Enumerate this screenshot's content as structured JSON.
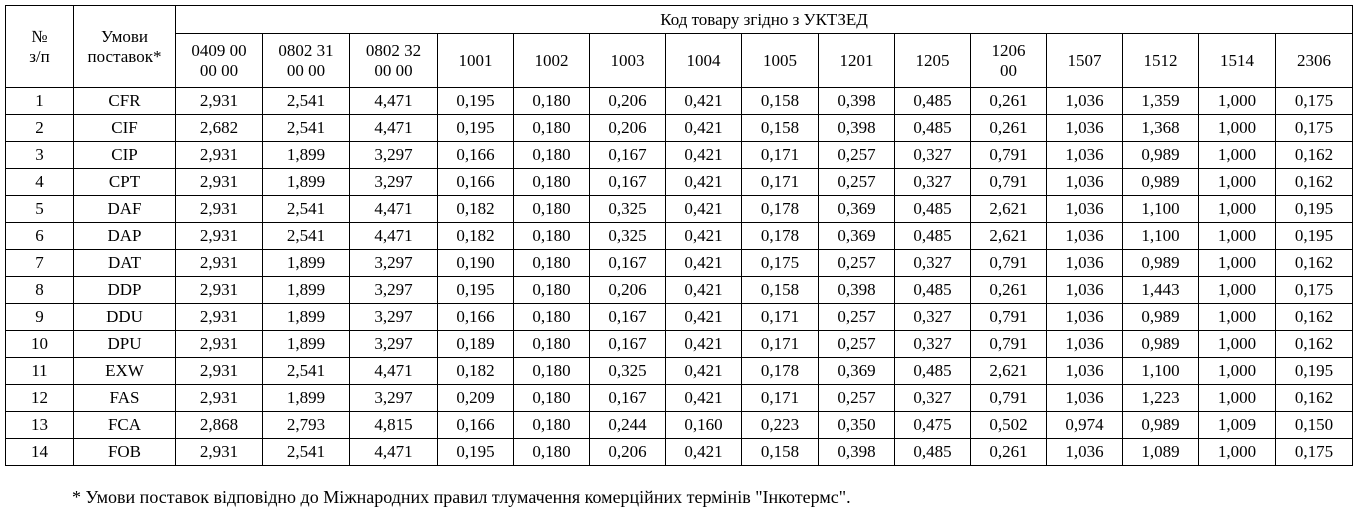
{
  "table": {
    "header": {
      "number": "№\nз/п",
      "terms": "Умови\nпоставок*",
      "group": "Код товару згідно з УКТЗЕД",
      "codes": [
        "0409 00\n00 00",
        "0802 31\n00 00",
        "0802 32\n00 00",
        "1001",
        "1002",
        "1003",
        "1004",
        "1005",
        "1201",
        "1205",
        "1206\n00",
        "1507",
        "1512",
        "1514",
        "2306"
      ]
    },
    "rows": [
      [
        "1",
        "CFR",
        "2,931",
        "2,541",
        "4,471",
        "0,195",
        "0,180",
        "0,206",
        "0,421",
        "0,158",
        "0,398",
        "0,485",
        "0,261",
        "1,036",
        "1,359",
        "1,000",
        "0,175"
      ],
      [
        "2",
        "CIF",
        "2,682",
        "2,541",
        "4,471",
        "0,195",
        "0,180",
        "0,206",
        "0,421",
        "0,158",
        "0,398",
        "0,485",
        "0,261",
        "1,036",
        "1,368",
        "1,000",
        "0,175"
      ],
      [
        "3",
        "CIP",
        "2,931",
        "1,899",
        "3,297",
        "0,166",
        "0,180",
        "0,167",
        "0,421",
        "0,171",
        "0,257",
        "0,327",
        "0,791",
        "1,036",
        "0,989",
        "1,000",
        "0,162"
      ],
      [
        "4",
        "CPT",
        "2,931",
        "1,899",
        "3,297",
        "0,166",
        "0,180",
        "0,167",
        "0,421",
        "0,171",
        "0,257",
        "0,327",
        "0,791",
        "1,036",
        "0,989",
        "1,000",
        "0,162"
      ],
      [
        "5",
        "DAF",
        "2,931",
        "2,541",
        "4,471",
        "0,182",
        "0,180",
        "0,325",
        "0,421",
        "0,178",
        "0,369",
        "0,485",
        "2,621",
        "1,036",
        "1,100",
        "1,000",
        "0,195"
      ],
      [
        "6",
        "DAP",
        "2,931",
        "2,541",
        "4,471",
        "0,182",
        "0,180",
        "0,325",
        "0,421",
        "0,178",
        "0,369",
        "0,485",
        "2,621",
        "1,036",
        "1,100",
        "1,000",
        "0,195"
      ],
      [
        "7",
        "DAT",
        "2,931",
        "1,899",
        "3,297",
        "0,190",
        "0,180",
        "0,167",
        "0,421",
        "0,175",
        "0,257",
        "0,327",
        "0,791",
        "1,036",
        "0,989",
        "1,000",
        "0,162"
      ],
      [
        "8",
        "DDP",
        "2,931",
        "1,899",
        "3,297",
        "0,195",
        "0,180",
        "0,206",
        "0,421",
        "0,158",
        "0,398",
        "0,485",
        "0,261",
        "1,036",
        "1,443",
        "1,000",
        "0,175"
      ],
      [
        "9",
        "DDU",
        "2,931",
        "1,899",
        "3,297",
        "0,166",
        "0,180",
        "0,167",
        "0,421",
        "0,171",
        "0,257",
        "0,327",
        "0,791",
        "1,036",
        "0,989",
        "1,000",
        "0,162"
      ],
      [
        "10",
        "DPU",
        "2,931",
        "1,899",
        "3,297",
        "0,189",
        "0,180",
        "0,167",
        "0,421",
        "0,171",
        "0,257",
        "0,327",
        "0,791",
        "1,036",
        "0,989",
        "1,000",
        "0,162"
      ],
      [
        "11",
        "EXW",
        "2,931",
        "2,541",
        "4,471",
        "0,182",
        "0,180",
        "0,325",
        "0,421",
        "0,178",
        "0,369",
        "0,485",
        "2,621",
        "1,036",
        "1,100",
        "1,000",
        "0,195"
      ],
      [
        "12",
        "FAS",
        "2,931",
        "1,899",
        "3,297",
        "0,209",
        "0,180",
        "0,167",
        "0,421",
        "0,171",
        "0,257",
        "0,327",
        "0,791",
        "1,036",
        "1,223",
        "1,000",
        "0,162"
      ],
      [
        "13",
        "FCA",
        "2,868",
        "2,793",
        "4,815",
        "0,166",
        "0,180",
        "0,244",
        "0,160",
        "0,223",
        "0,350",
        "0,475",
        "0,502",
        "0,974",
        "0,989",
        "1,009",
        "0,150"
      ],
      [
        "14",
        "FOB",
        "2,931",
        "2,541",
        "4,471",
        "0,195",
        "0,180",
        "0,206",
        "0,421",
        "0,158",
        "0,398",
        "0,485",
        "0,261",
        "1,036",
        "1,089",
        "1,000",
        "0,175"
      ]
    ]
  },
  "footnote": "* Умови поставок відповідно до Міжнародних правил тлумачення комерційних термінів \"Інкотермс\"."
}
